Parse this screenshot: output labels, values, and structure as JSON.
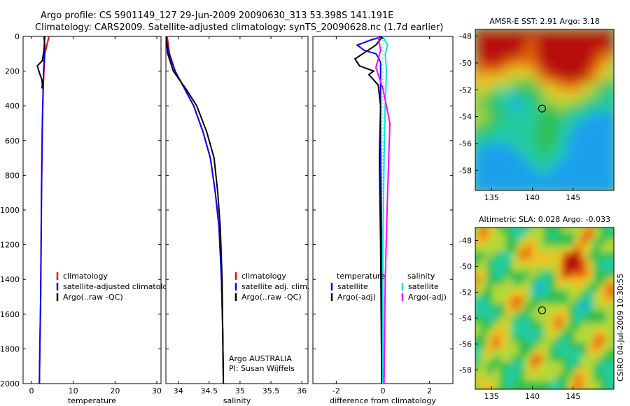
{
  "header": {
    "line1": "Argo profile: CS 5901149_127 29-Jun-2009 20090630_313 53.398S 141.191E",
    "line2": "Climatology: CARS2009. Satellite-adjusted climatology: synTS_20090628.nc (1.7d earlier)"
  },
  "side_label": "CSIRO 04-Jul-2009 10:30:55",
  "colors": {
    "climatology": "#ff0000",
    "satellite": "#0000ff",
    "argo": "#000000",
    "sal_satellite": "#00e5e5",
    "sal_argo": "#ff00ff"
  },
  "chart_data": [
    {
      "type": "line",
      "xlabel": "temperature",
      "ylabel": "",
      "xlim": [
        -2,
        31
      ],
      "ylim": [
        2000,
        0
      ],
      "xticks": [
        "0",
        "10",
        "20",
        "30"
      ],
      "yticks": [
        "0",
        "200",
        "400",
        "600",
        "800",
        "1000",
        "1200",
        "1400",
        "1600",
        "1800",
        "2000"
      ],
      "legend": [
        "climatology",
        "satellite-adjusted climatology",
        "Argo(..raw -QC)"
      ],
      "series": [
        {
          "name": "climatology",
          "color": "#ff0000",
          "x": [
            4.2,
            3.7,
            3.2,
            3.0,
            2.8,
            2.6,
            2.5,
            2.4,
            2.3,
            2.2,
            2.0,
            1.9
          ],
          "y": [
            0,
            50,
            100,
            200,
            300,
            500,
            700,
            900,
            1200,
            1500,
            1800,
            2000
          ]
        },
        {
          "name": "satellite-adjusted climatology",
          "color": "#0000ff",
          "x": [
            3.0,
            3.2,
            3.1,
            2.9,
            2.8,
            2.6,
            2.5,
            2.4,
            2.3,
            2.2,
            2.0,
            1.9
          ],
          "y": [
            0,
            50,
            100,
            200,
            300,
            500,
            700,
            900,
            1200,
            1500,
            1800,
            2000
          ]
        },
        {
          "name": "Argo(..raw -QC)",
          "color": "#000000",
          "x": [
            3.2,
            3.0,
            2.6,
            1.4,
            1.9,
            2.5,
            2.6,
            2.5
          ],
          "y": [
            0,
            80,
            140,
            170,
            210,
            250,
            280,
            300
          ]
        }
      ]
    },
    {
      "type": "line",
      "xlabel": "salinity",
      "xlim": [
        33.8,
        36.1
      ],
      "ylim": [
        2000,
        0
      ],
      "xticks": [
        "34",
        "34.5",
        "35",
        "35.5",
        "36"
      ],
      "legend": [
        "climatology",
        "satellite adj. clim.",
        "Argo(..raw -QC)"
      ],
      "annotations": [
        "Argo AUSTRALIA",
        "PI: Susan Wijffels"
      ],
      "series": [
        {
          "name": "climatology",
          "color": "#ff0000",
          "x": [
            33.82,
            33.86,
            33.95,
            34.1,
            34.25,
            34.4,
            34.52,
            34.6,
            34.66,
            34.7,
            34.72,
            34.73
          ],
          "y": [
            0,
            100,
            200,
            300,
            400,
            550,
            700,
            900,
            1100,
            1400,
            1700,
            2000
          ]
        },
        {
          "name": "satellite adj. clim.",
          "color": "#0000ff",
          "x": [
            33.8,
            33.85,
            33.95,
            34.1,
            34.25,
            34.4,
            34.52,
            34.6,
            34.66,
            34.7,
            34.72,
            34.73
          ],
          "y": [
            0,
            100,
            200,
            300,
            400,
            550,
            700,
            900,
            1100,
            1400,
            1700,
            2000
          ]
        },
        {
          "name": "Argo(..raw -QC)",
          "color": "#000000",
          "x": [
            33.8,
            33.83,
            33.92,
            34.12,
            34.3,
            34.46,
            34.58,
            34.64,
            34.68,
            34.71,
            34.72,
            34.73
          ],
          "y": [
            0,
            100,
            200,
            300,
            400,
            550,
            700,
            900,
            1100,
            1400,
            1700,
            2000
          ]
        }
      ]
    },
    {
      "type": "line",
      "xlabel": "difference from climatology",
      "xlim": [
        -3,
        3
      ],
      "ylim": [
        2000,
        0
      ],
      "xticks": [
        "-2",
        "0",
        "2"
      ],
      "legend_left_title": "temperature",
      "legend_right_title": "salinity",
      "legend": [
        "satellite",
        "Argo(-adj)",
        "satellite",
        "Argo(-adj)"
      ],
      "series": [
        {
          "name": "satellite",
          "color": "#0000ff",
          "x": [
            0.0,
            -0.5,
            -1.1,
            -0.8,
            -0.3,
            -0.2,
            -0.1,
            -0.1,
            -0.1,
            -0.05,
            0.0
          ],
          "y": [
            0,
            20,
            50,
            80,
            100,
            120,
            150,
            300,
            600,
            1200,
            2000
          ]
        },
        {
          "name": "Argo(-adj)",
          "color": "#000000",
          "x": [
            0.0,
            -0.3,
            -1.2,
            -1.0,
            -0.4,
            -0.6,
            -0.2,
            -0.1,
            -0.15,
            -0.1,
            -0.05
          ],
          "y": [
            0,
            50,
            130,
            170,
            200,
            220,
            280,
            400,
            700,
            1200,
            2000
          ]
        },
        {
          "name": "satellite",
          "color": "#00e5e5",
          "x": [
            0.0,
            0.2,
            0.1,
            0.15,
            0.1,
            0.05,
            0.0,
            0.0
          ],
          "y": [
            0,
            50,
            100,
            200,
            400,
            700,
            1200,
            2000
          ]
        },
        {
          "name": "Argo(-adj)",
          "color": "#ff00ff",
          "x": [
            -0.2,
            -0.1,
            -0.3,
            0.0,
            0.3,
            0.2,
            0.1,
            0.05
          ],
          "y": [
            0,
            80,
            180,
            300,
            500,
            900,
            1400,
            2000
          ]
        }
      ]
    },
    {
      "type": "heatmap",
      "title": "AMSR-E SST: 2.91 Argo: 3.18",
      "xlim": [
        133,
        150
      ],
      "ylim": [
        -59.5,
        -47.5
      ],
      "xticks": [
        "135",
        "140",
        "145"
      ],
      "yticks": [
        "-48",
        "-50",
        "-52",
        "-54",
        "-56",
        "-58"
      ],
      "marker": {
        "lon": 141.191,
        "lat": -53.398
      }
    },
    {
      "type": "heatmap",
      "title": "Altimetric SLA: 0.028 Argo: -0.033",
      "xlim": [
        133,
        150
      ],
      "ylim": [
        -59.5,
        -47
      ],
      "xticks": [
        "135",
        "140",
        "145"
      ],
      "yticks": [
        "-48",
        "-50",
        "-52",
        "-54",
        "-56",
        "-58"
      ],
      "marker": {
        "lon": 141.191,
        "lat": -53.398
      }
    }
  ]
}
